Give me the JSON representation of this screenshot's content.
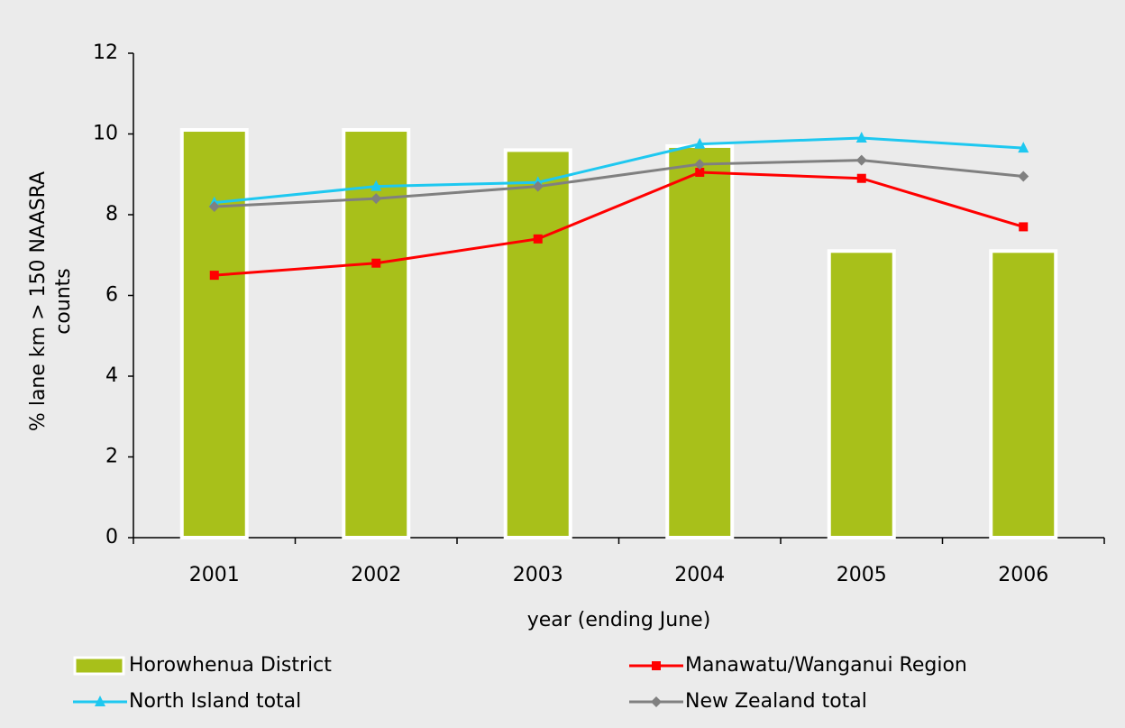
{
  "chart_data": {
    "type": "bar-line",
    "x_label": "year (ending June)",
    "y_label": "% lane km > 150 NAASRA counts",
    "categories": [
      "2001",
      "2002",
      "2003",
      "2004",
      "2005",
      "2006"
    ],
    "series": [
      {
        "name": "Horowhenua District",
        "type": "bar",
        "color": "#a8c01a",
        "values": [
          10.1,
          10.1,
          9.6,
          9.7,
          7.1,
          7.1
        ]
      },
      {
        "name": "Manawatu/Wanganui Region",
        "type": "line",
        "marker": "square",
        "color": "#ff0000",
        "values": [
          6.5,
          6.8,
          7.4,
          9.05,
          8.9,
          7.7
        ]
      },
      {
        "name": "North Island total",
        "type": "line",
        "marker": "triangle",
        "color": "#1ec8f0",
        "values": [
          8.3,
          8.7,
          8.8,
          9.75,
          9.9,
          9.65
        ]
      },
      {
        "name": "New Zealand total",
        "type": "line",
        "marker": "diamond",
        "color": "#808080",
        "values": [
          8.2,
          8.4,
          8.7,
          9.25,
          9.35,
          8.95
        ]
      }
    ],
    "ylim": [
      0,
      12
    ],
    "yticks": [
      0,
      2,
      4,
      6,
      8,
      10,
      12
    ],
    "grid": false,
    "legend": "bottom"
  }
}
